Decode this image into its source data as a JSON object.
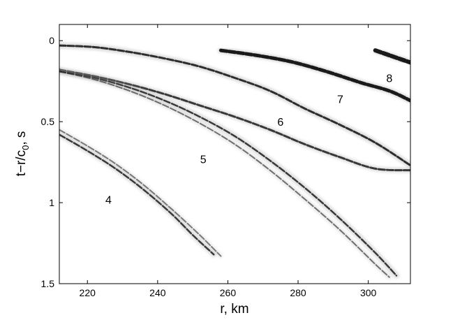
{
  "chart_data": {
    "type": "line",
    "title": "",
    "xlabel": "r, km",
    "ylabel_main": "t−r/c",
    "ylabel_sub": "0",
    "ylabel_tail": ", s",
    "xlim": [
      212,
      312
    ],
    "ylim": [
      1.5,
      -0.1
    ],
    "y_inverted": true,
    "grid": false,
    "legend": "none",
    "xticks": [
      {
        "value": 220,
        "label": "220"
      },
      {
        "value": 240,
        "label": "240"
      },
      {
        "value": 260,
        "label": "260"
      },
      {
        "value": 280,
        "label": "280"
      },
      {
        "value": 300,
        "label": "300"
      }
    ],
    "yticks": [
      {
        "value": 0,
        "label": "0"
      },
      {
        "value": 0.5,
        "label": "0.5"
      },
      {
        "value": 1,
        "label": "1"
      },
      {
        "value": 1.5,
        "label": "1.5"
      }
    ],
    "colors": {
      "trace": "#1a1a1a",
      "halo": "#9a9a9a",
      "axis": "#000000"
    },
    "series": [
      {
        "label": "8",
        "label_pos": {
          "x": 306,
          "y": 0.23
        },
        "tracks": [
          {
            "points": [
              [
                302,
                0.06
              ],
              [
                306,
                0.09
              ],
              [
                310,
                0.12
              ],
              [
                312,
                0.135
              ]
            ],
            "width": 6,
            "halo_width": 9,
            "opacity": 1.0
          }
        ]
      },
      {
        "label": "7",
        "label_pos": {
          "x": 292,
          "y": 0.36
        },
        "tracks": [
          {
            "points": [
              [
                258,
                0.06
              ],
              [
                268,
                0.09
              ],
              [
                278,
                0.13
              ],
              [
                288,
                0.19
              ],
              [
                298,
                0.26
              ],
              [
                306,
                0.31
              ],
              [
                312,
                0.37
              ]
            ],
            "width": 5,
            "halo_width": 9,
            "opacity": 1.0
          }
        ]
      },
      {
        "label": "6",
        "label_pos": {
          "x": 275,
          "y": 0.5
        },
        "tracks": [
          {
            "points": [
              [
                212,
                0.03
              ],
              [
                222,
                0.04
              ],
              [
                232,
                0.07
              ],
              [
                242,
                0.11
              ],
              [
                252,
                0.16
              ],
              [
                262,
                0.23
              ],
              [
                272,
                0.31
              ],
              [
                282,
                0.42
              ],
              [
                292,
                0.52
              ],
              [
                302,
                0.63
              ],
              [
                312,
                0.77
              ]
            ],
            "width": 3,
            "halo_width": 9,
            "opacity": 0.9
          },
          {
            "points": [
              [
                212,
                0.18
              ],
              [
                222,
                0.22
              ],
              [
                232,
                0.27
              ],
              [
                242,
                0.33
              ],
              [
                252,
                0.4
              ],
              [
                262,
                0.47
              ],
              [
                272,
                0.55
              ],
              [
                282,
                0.64
              ],
              [
                292,
                0.72
              ],
              [
                302,
                0.79
              ],
              [
                312,
                0.8
              ]
            ],
            "width": 3,
            "halo_width": 8,
            "opacity": 0.85
          }
        ]
      },
      {
        "label": "5",
        "label_pos": {
          "x": 253,
          "y": 0.73
        },
        "tracks": [
          {
            "points": [
              [
                212,
                0.19
              ],
              [
                222,
                0.23
              ],
              [
                232,
                0.29
              ],
              [
                242,
                0.37
              ],
              [
                252,
                0.47
              ],
              [
                262,
                0.59
              ],
              [
                272,
                0.74
              ],
              [
                282,
                0.91
              ],
              [
                292,
                1.1
              ],
              [
                302,
                1.31
              ],
              [
                308,
                1.45
              ]
            ],
            "width": 2.5,
            "halo_width": 9,
            "opacity": 0.85
          },
          {
            "points": [
              [
                212,
                0.19
              ],
              [
                222,
                0.24
              ],
              [
                232,
                0.31
              ],
              [
                242,
                0.4
              ],
              [
                252,
                0.51
              ],
              [
                262,
                0.64
              ],
              [
                272,
                0.8
              ],
              [
                282,
                0.98
              ],
              [
                292,
                1.17
              ],
              [
                302,
                1.38
              ],
              [
                306,
                1.46
              ]
            ],
            "width": 2,
            "halo_width": 7,
            "opacity": 0.6
          }
        ]
      },
      {
        "label": "4",
        "label_pos": {
          "x": 226,
          "y": 0.98
        },
        "tracks": [
          {
            "points": [
              [
                212,
                0.58
              ],
              [
                220,
                0.68
              ],
              [
                228,
                0.79
              ],
              [
                236,
                0.92
              ],
              [
                244,
                1.07
              ],
              [
                250,
                1.2
              ],
              [
                256,
                1.32
              ]
            ],
            "width": 2.5,
            "halo_width": 8,
            "opacity": 0.85
          },
          {
            "points": [
              [
                212,
                0.55
              ],
              [
                220,
                0.65
              ],
              [
                228,
                0.76
              ],
              [
                236,
                0.89
              ],
              [
                244,
                1.04
              ],
              [
                252,
                1.2
              ],
              [
                258,
                1.33
              ]
            ],
            "width": 2,
            "halo_width": 6,
            "opacity": 0.55
          }
        ]
      }
    ]
  }
}
